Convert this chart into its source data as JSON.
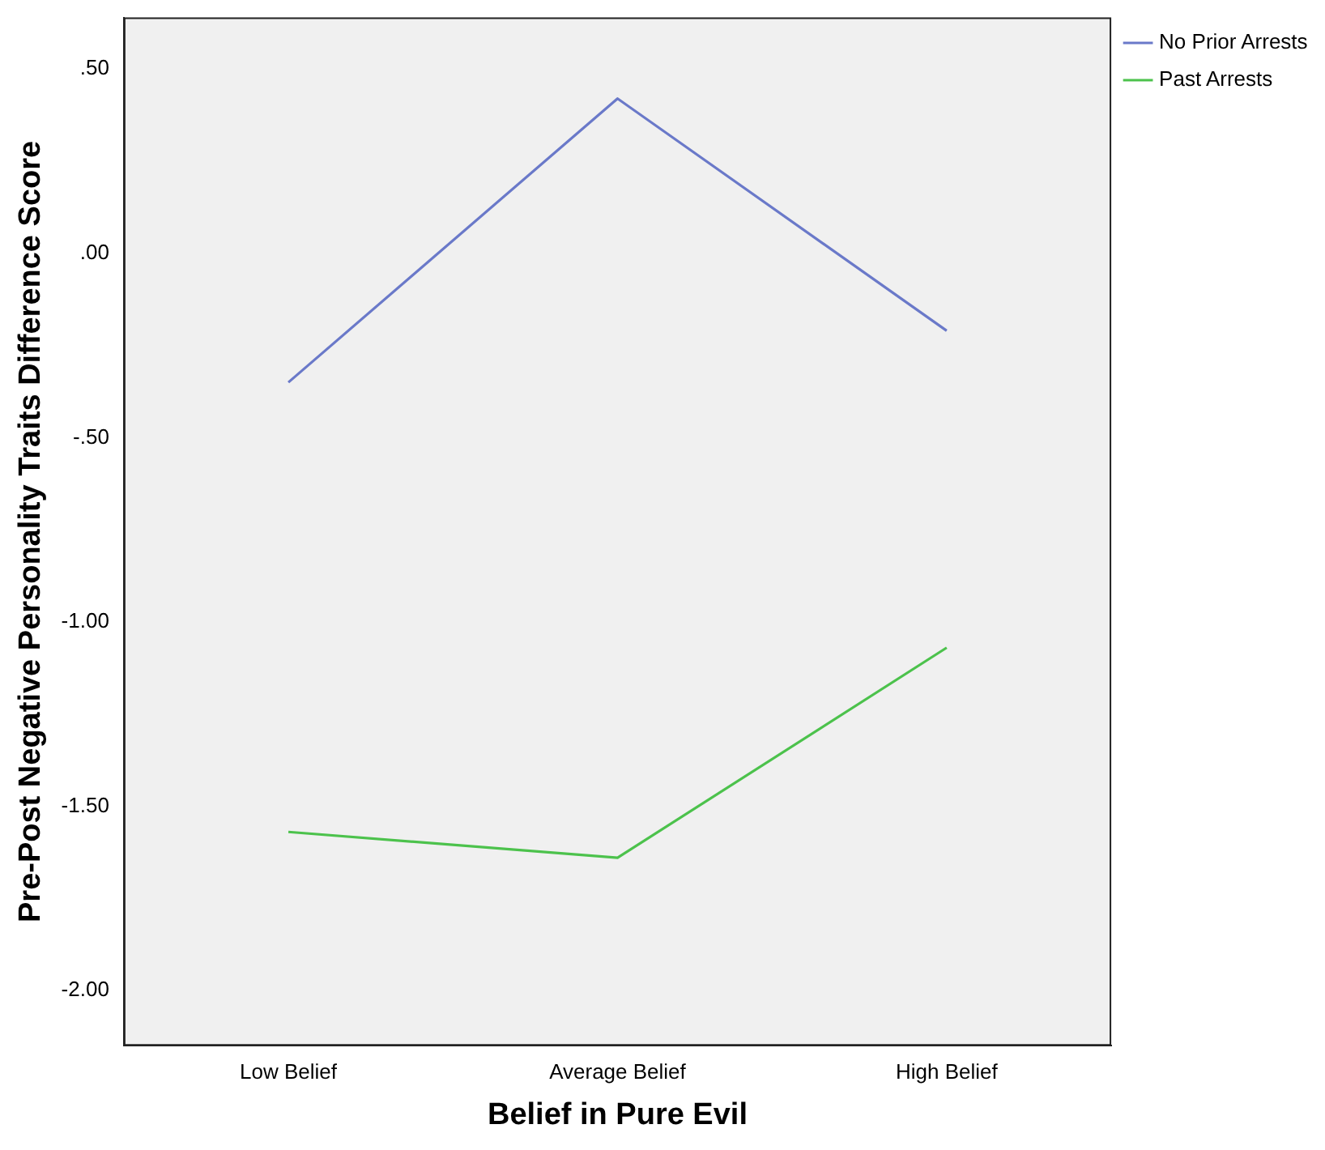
{
  "chart_data": {
    "type": "line",
    "xlabel": "Belief in Pure Evil",
    "ylabel": "Pre-Post Negative Personality Traits Difference Score",
    "categories": [
      "Low Belief",
      "Average Belief",
      "High Belief"
    ],
    "series": [
      {
        "name": "No Prior Arrests",
        "color": "#6a79c9",
        "values": [
          -0.35,
          0.42,
          -0.21
        ]
      },
      {
        "name": "Past Arrests",
        "color": "#4cc24c",
        "values": [
          -1.57,
          -1.64,
          -1.07
        ]
      }
    ],
    "ylim": [
      -2.15,
      0.64
    ],
    "yticks": [
      {
        "value": -2,
        "label": "-2.00"
      },
      {
        "value": -1.5,
        "label": "-1.50"
      },
      {
        "value": -1,
        "label": "-1.00"
      },
      {
        "value": -0.5,
        "label": "-.50"
      },
      {
        "value": 0,
        "label": ".00"
      },
      {
        "value": 0.5,
        "label": ".50"
      }
    ],
    "grid": false,
    "legend": "top right",
    "marker": "none",
    "line_style": "solid"
  }
}
